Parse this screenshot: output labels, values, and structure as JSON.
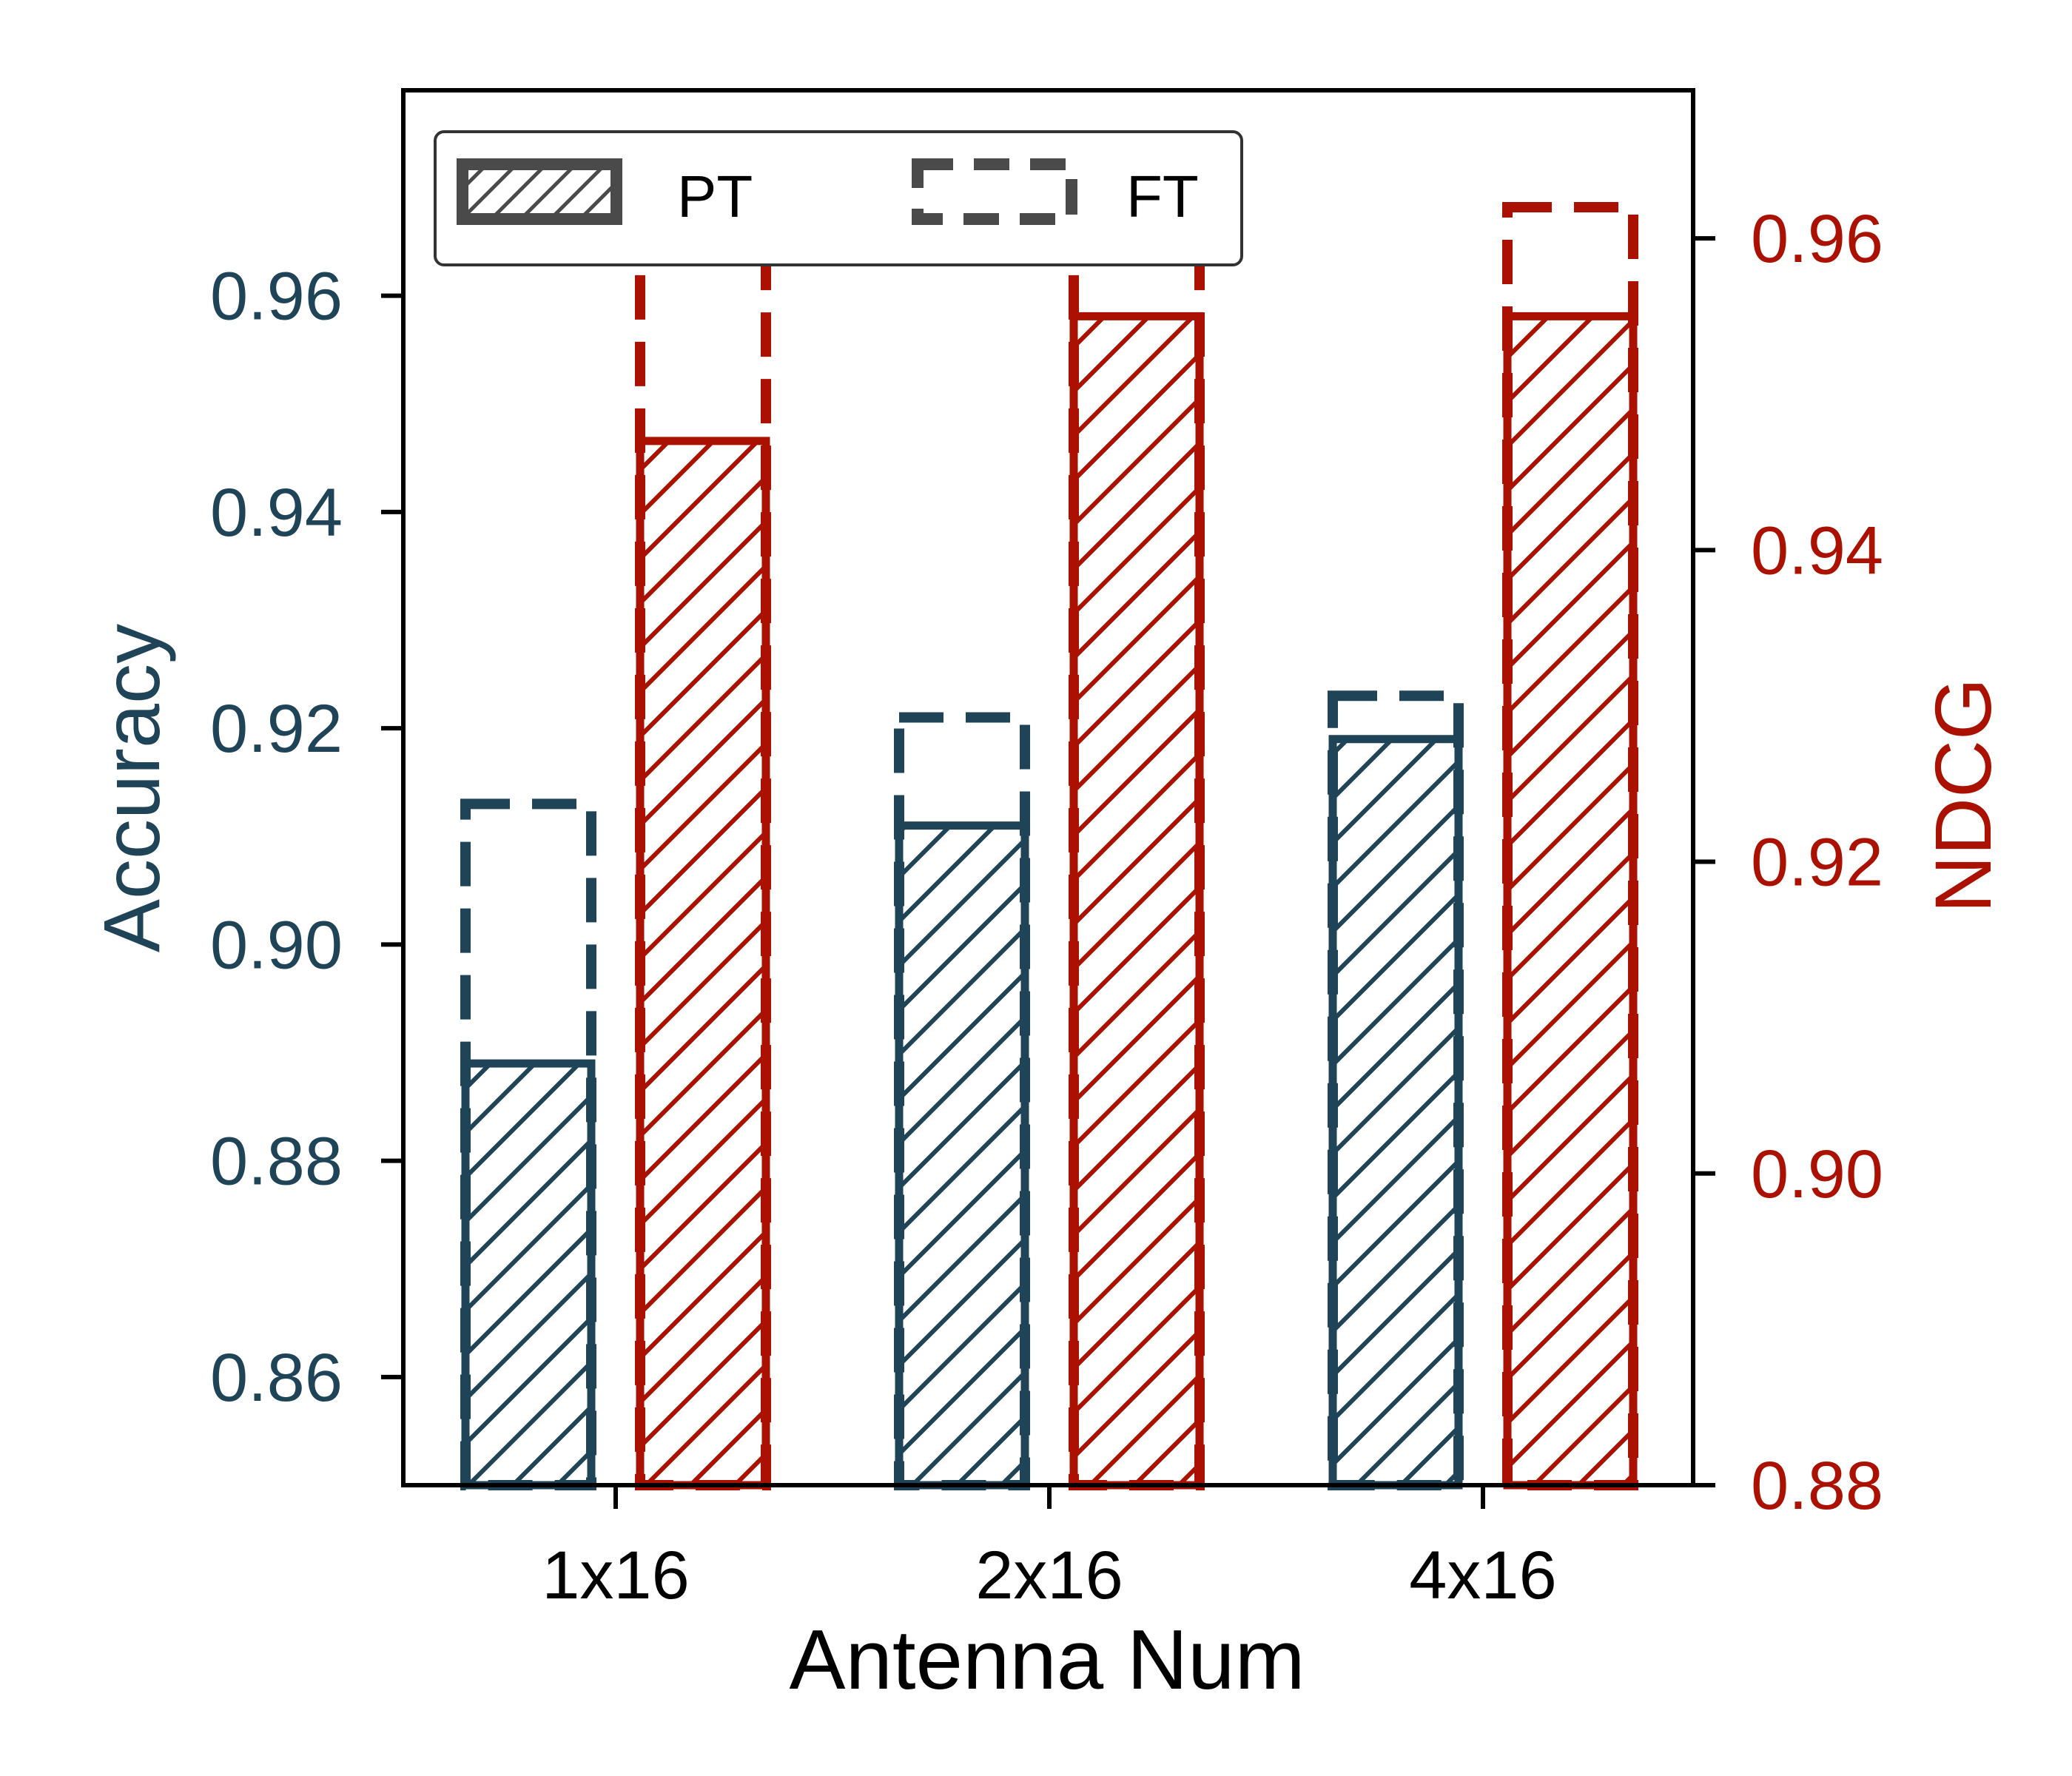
{
  "colors": {
    "accuracy": "#1f4458",
    "ndcg": "#aa1100",
    "legend_swatch": "#4a4a4a",
    "axis": "#000000"
  },
  "chart_data": {
    "type": "bar",
    "categories": [
      "1x16",
      "2x16",
      "4x16"
    ],
    "xlabel": "Antenna Num",
    "ylabel_left": "Accuracy",
    "ylabel_right": "NDCG",
    "ylim_left": [
      0.85,
      0.979
    ],
    "ylim_right": [
      0.88,
      0.9695
    ],
    "yticks_left": [
      "0.86",
      "0.88",
      "0.90",
      "0.92",
      "0.94",
      "0.96"
    ],
    "yticks_right": [
      "0.88",
      "0.90",
      "0.92",
      "0.94",
      "0.96"
    ],
    "legend": {
      "position": "upper-left",
      "entries": [
        "PT",
        "FT"
      ]
    },
    "series": [
      {
        "name": "PT",
        "axis": "Accuracy",
        "style": "hatched",
        "values": [
          0.889,
          0.911,
          0.919
        ]
      },
      {
        "name": "FT",
        "axis": "Accuracy",
        "style": "dashed",
        "values": [
          0.913,
          0.921,
          0.923
        ]
      },
      {
        "name": "PT",
        "axis": "NDCG",
        "style": "hatched",
        "values": [
          0.947,
          0.955,
          0.955
        ]
      },
      {
        "name": "FT",
        "axis": "NDCG",
        "style": "dashed",
        "values": [
          0.96,
          0.96,
          0.962
        ]
      }
    ]
  }
}
